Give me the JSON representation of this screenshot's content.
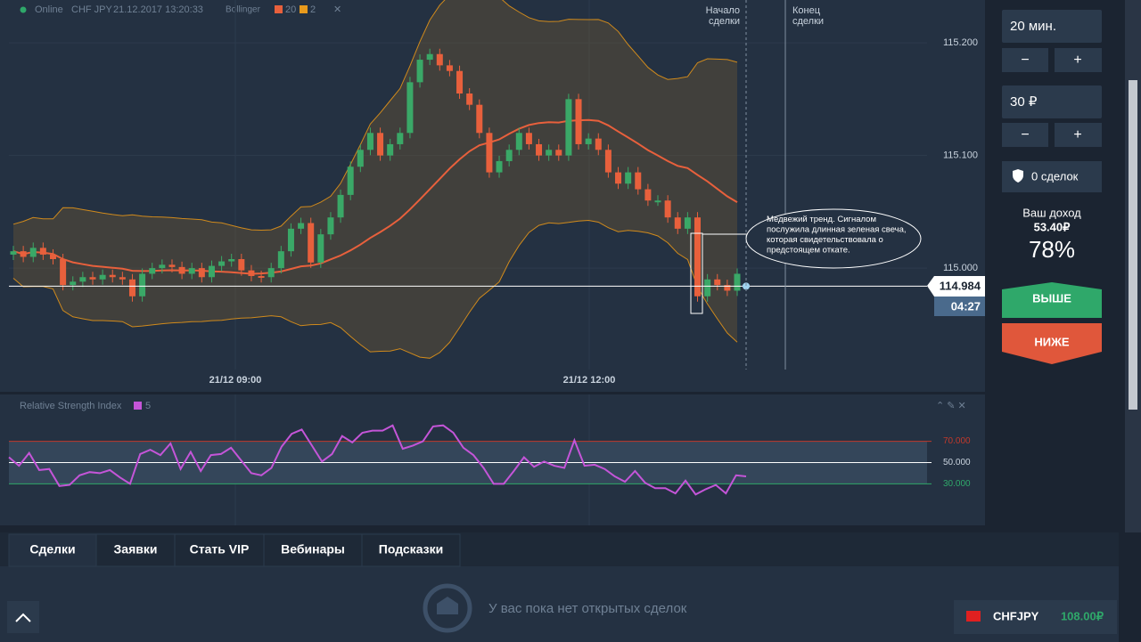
{
  "header": {
    "status": "Online",
    "instrument": "CHF JPY",
    "datetime": "21.12.2017 13:20:33",
    "indicator": "Bollinger",
    "period": 20,
    "deviation": 2
  },
  "chart": {
    "type": "candlestick",
    "prices": [
      115.012,
      115.015,
      115.01,
      115.018,
      115.012,
      115.008,
      114.985,
      114.988,
      114.992,
      114.99,
      114.994,
      114.992,
      114.99,
      114.975,
      114.995,
      115.0,
      115.003,
      115.001,
      114.995,
      115.0,
      114.992,
      115.002,
      115.006,
      115.008,
      114.998,
      114.993,
      114.992,
      115.0,
      115.015,
      115.035,
      115.04,
      115.005,
      115.03,
      115.045,
      115.065,
      115.09,
      115.105,
      115.12,
      115.1,
      115.11,
      115.12,
      115.165,
      115.185,
      115.19,
      115.18,
      115.175,
      115.155,
      115.145,
      115.12,
      115.085,
      115.095,
      115.105,
      115.12,
      115.11,
      115.1,
      115.105,
      115.1,
      115.15,
      115.11,
      115.115,
      115.105,
      115.085,
      115.075,
      115.085,
      115.07,
      115.06,
      115.06,
      115.045,
      115.035,
      115.045,
      114.975,
      114.99,
      114.985,
      114.98,
      114.995
    ],
    "ylim": [
      114.91,
      115.238
    ],
    "yticks": [
      {
        "value": 115.0,
        "label": "115.000"
      },
      {
        "value": 115.1,
        "label": "115.100"
      },
      {
        "value": 115.2,
        "label": "115.200"
      }
    ],
    "xticks": [
      "21/12 09:00",
      "21/12 12:00"
    ],
    "current_price": 114.984,
    "timer": "04:27",
    "start_label": "Начало сделки",
    "end_label": "Конец сделки",
    "annotation": "Медвежий тренд. Сигналом послужила длинная зеленая свеча, которая свидетельствовала о предстоящем откате."
  },
  "rsi": {
    "type": "line",
    "title": "Relative Strength Index",
    "period": 5,
    "values": [
      55,
      47,
      59,
      43,
      44,
      28,
      29,
      38,
      41,
      40,
      43,
      36,
      30,
      58,
      62,
      57,
      68,
      44,
      60,
      42,
      57,
      58,
      64,
      52,
      40,
      38,
      45,
      65,
      77,
      81,
      66,
      51,
      58,
      75,
      69,
      78,
      80,
      80,
      85,
      63,
      66,
      70,
      84,
      85,
      78,
      64,
      57,
      45,
      30,
      30,
      42,
      55,
      46,
      51,
      47,
      45,
      71,
      47,
      48,
      44,
      37,
      32,
      42,
      31,
      26,
      26,
      21,
      33,
      20,
      25,
      29,
      21,
      38,
      37
    ],
    "ylim": [
      -9,
      114
    ],
    "yticks": [
      {
        "value": 30,
        "label": "30.000"
      },
      {
        "value": 50,
        "label": "50.000"
      },
      {
        "value": 70,
        "label": "70.000"
      }
    ]
  },
  "panel": {
    "duration": "20 мин.",
    "minus": "−",
    "plus": "+",
    "amount": "30 ₽",
    "trades": "0 сделок",
    "income_label": "Ваш доход",
    "income": "53.40₽",
    "percent": "78%",
    "up": "ВЫШЕ",
    "down": "НИЖЕ"
  },
  "tabs": [
    "Сделки",
    "Заявки",
    "Стать VIP",
    "Вебинары",
    "Подсказки"
  ],
  "empty": "У вас пока нет открытых сделок",
  "asset": {
    "name": "CHFJPY",
    "price": "108.00₽"
  }
}
